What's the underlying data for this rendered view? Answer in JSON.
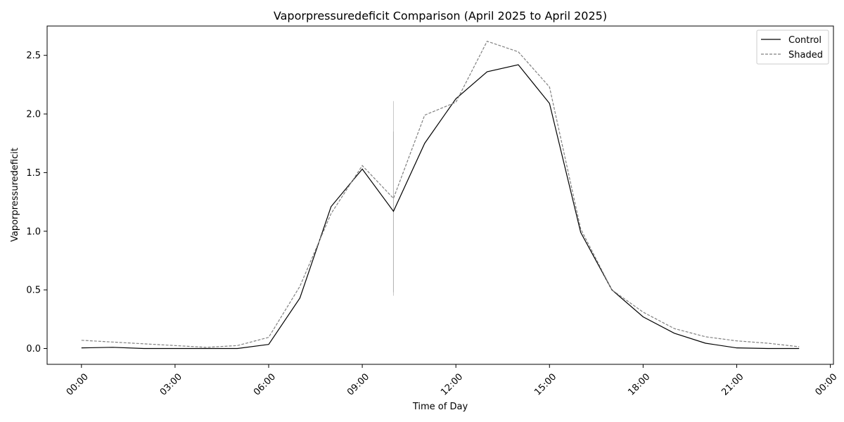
{
  "chart_data": {
    "type": "line",
    "title": "Vaporpressuredeficit Comparison (April 2025 to April 2025)",
    "xlabel": "Time of Day",
    "ylabel": "Vaporpressuredeficit",
    "x": [
      0,
      1,
      2,
      3,
      4,
      5,
      6,
      7,
      8,
      9,
      10,
      11,
      12,
      13,
      14,
      15,
      16,
      17,
      18,
      19,
      20,
      21,
      22,
      23
    ],
    "xlim": [
      -1.1,
      24.1
    ],
    "ylim": [
      -0.135,
      2.75
    ],
    "x_ticks": [
      0,
      3,
      6,
      9,
      12,
      15,
      18,
      21,
      24
    ],
    "x_tick_labels": [
      "00:00",
      "03:00",
      "06:00",
      "09:00",
      "12:00",
      "15:00",
      "18:00",
      "21:00",
      "00:00"
    ],
    "y_ticks": [
      0.0,
      0.5,
      1.0,
      1.5,
      2.0,
      2.5
    ],
    "y_tick_labels": [
      "0.0",
      "0.5",
      "1.0",
      "1.5",
      "2.0",
      "2.5"
    ],
    "grid": false,
    "legend_position": "top-right",
    "series": [
      {
        "name": "Control",
        "color": "#000000",
        "style": "solid",
        "values": [
          0.005,
          0.01,
          0.0,
          0.0,
          0.0,
          0.0,
          0.035,
          0.43,
          1.21,
          1.53,
          1.17,
          1.75,
          2.13,
          2.36,
          2.42,
          2.09,
          0.99,
          0.5,
          0.27,
          0.13,
          0.045,
          0.005,
          0.0,
          0.0
        ]
      },
      {
        "name": "Shaded",
        "color": "#808080",
        "style": "dashed",
        "values": [
          0.07,
          0.055,
          0.04,
          0.025,
          0.01,
          0.025,
          0.095,
          0.53,
          1.15,
          1.56,
          1.28,
          1.99,
          2.1,
          2.62,
          2.53,
          2.23,
          1.02,
          0.5,
          0.31,
          0.17,
          0.1,
          0.065,
          0.045,
          0.015
        ]
      }
    ],
    "error_bars": [
      {
        "series": "Shaded",
        "x": 10,
        "low": 0.45,
        "high": 2.11,
        "color": "#c8c8c8"
      },
      {
        "series": "Control",
        "x": 10,
        "low": 0.48,
        "high": 1.85,
        "color": "#b4b4b4"
      }
    ]
  }
}
